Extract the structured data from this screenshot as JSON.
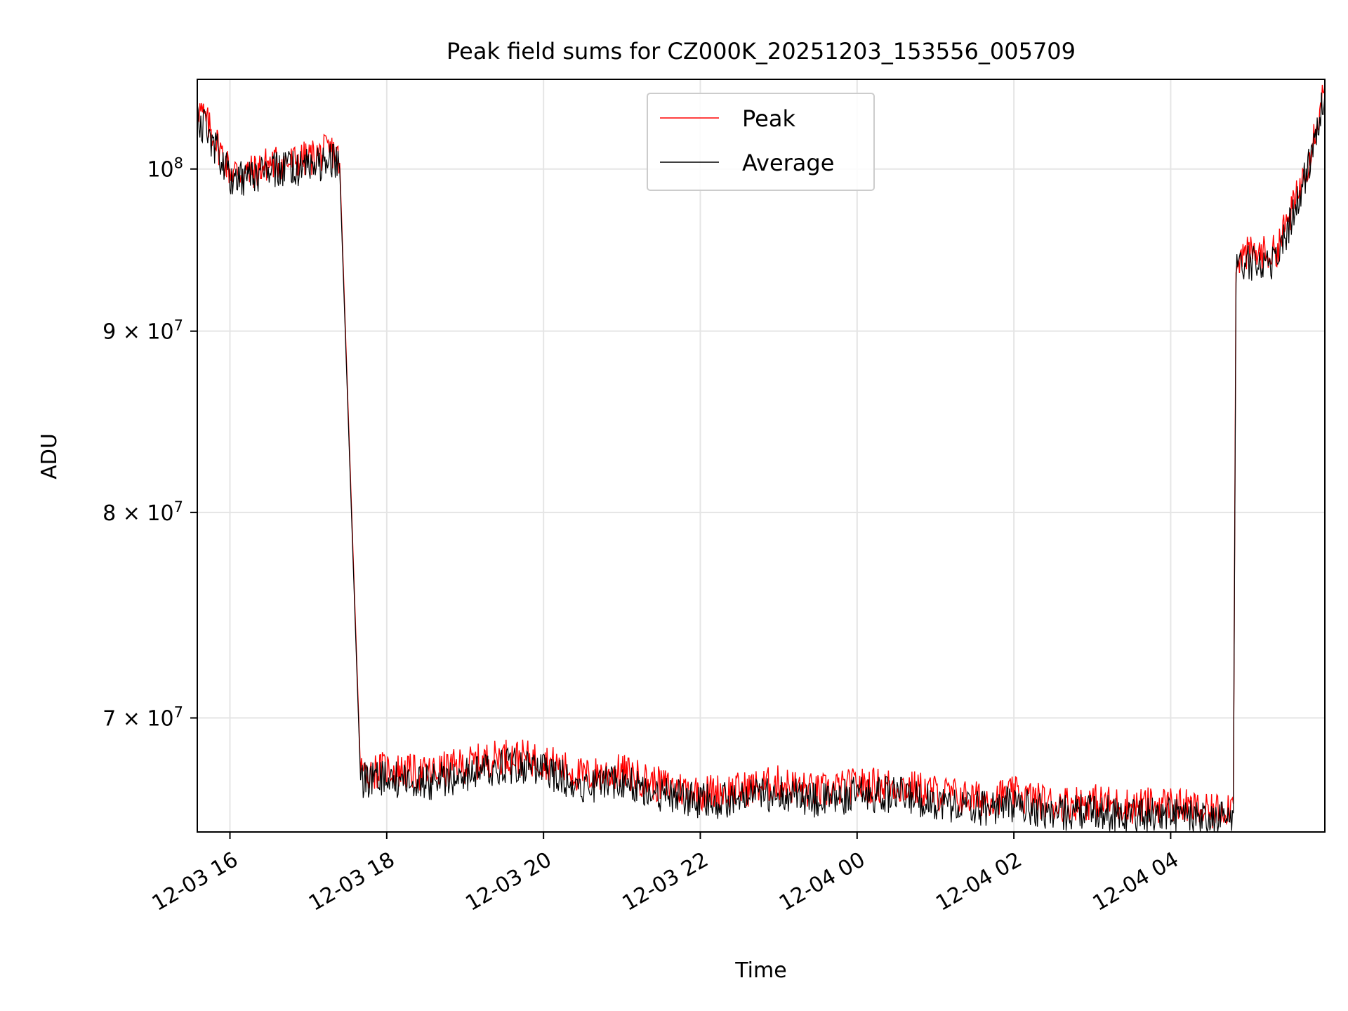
{
  "chart_data": {
    "type": "line",
    "title": "Peak field sums for CZ000K_20251203_153556_005709",
    "xlabel": "Time",
    "ylabel": "ADU",
    "y_scale": "log",
    "xlim": [
      "2025-12-03 15:35",
      "2025-12-04 05:58"
    ],
    "ylim": [
      65000000,
      106000000
    ],
    "grid": true,
    "legend_position": "top-center",
    "x_ticks": [
      "2025-12-03 16:00",
      "2025-12-03 18:00",
      "2025-12-03 20:00",
      "2025-12-03 22:00",
      "2025-12-04 00:00",
      "2025-12-04 02:00",
      "2025-12-04 04:00"
    ],
    "x_tick_labels": [
      "12-03 16",
      "12-03 18",
      "12-03 20",
      "12-03 22",
      "12-04 00",
      "12-04 02",
      "12-04 04"
    ],
    "y_ticks": [
      {
        "value": 70000000,
        "mantissa": "7",
        "exponent": "7"
      },
      {
        "value": 80000000,
        "mantissa": "8",
        "exponent": "7"
      },
      {
        "value": 90000000,
        "mantissa": "9",
        "exponent": "7"
      },
      {
        "value": 100000000,
        "mantissa": "",
        "exponent": "8"
      }
    ],
    "y_tick_base": "10",
    "y_tick_times": "×",
    "series": [
      {
        "name": "Peak",
        "color": "#ff0000"
      },
      {
        "name": "Average",
        "color": "#000000"
      }
    ],
    "x": [
      "2025-12-03 15:35",
      "2025-12-03 15:45",
      "2025-12-03 16:00",
      "2025-12-03 16:15",
      "2025-12-03 16:30",
      "2025-12-03 16:45",
      "2025-12-03 17:00",
      "2025-12-03 17:10",
      "2025-12-03 17:20",
      "2025-12-03 17:24",
      "2025-12-03 17:40",
      "2025-12-03 18:00",
      "2025-12-03 18:30",
      "2025-12-03 19:00",
      "2025-12-03 19:30",
      "2025-12-03 20:00",
      "2025-12-03 20:30",
      "2025-12-03 21:00",
      "2025-12-03 21:30",
      "2025-12-03 22:00",
      "2025-12-03 22:30",
      "2025-12-03 23:00",
      "2025-12-03 23:30",
      "2025-12-04 00:00",
      "2025-12-04 00:30",
      "2025-12-04 01:00",
      "2025-12-04 01:30",
      "2025-12-04 02:00",
      "2025-12-04 02:30",
      "2025-12-04 03:00",
      "2025-12-04 03:30",
      "2025-12-04 04:00",
      "2025-12-04 04:30",
      "2025-12-04 04:48",
      "2025-12-04 04:50",
      "2025-12-04 05:00",
      "2025-12-04 05:20",
      "2025-12-04 05:35",
      "2025-12-04 05:45",
      "2025-12-04 05:58"
    ],
    "peak_values": [
      104200000,
      102600000,
      99900000,
      99700000,
      100400000,
      100400000,
      100700000,
      101000000,
      101200000,
      100400000,
      67600000,
      67700000,
      67500000,
      67900000,
      68300000,
      68100000,
      67400000,
      67600000,
      67000000,
      66700000,
      66800000,
      67100000,
      66700000,
      67000000,
      67000000,
      66700000,
      66400000,
      66600000,
      66200000,
      66300000,
      66100000,
      66200000,
      65800000,
      66200000,
      94400000,
      94600000,
      94700000,
      97800000,
      100500000,
      105500000
    ],
    "average_values": [
      103600000,
      102100000,
      99500000,
      99300000,
      99900000,
      100000000,
      100200000,
      100400000,
      100700000,
      100000000,
      67200000,
      67300000,
      67100000,
      67500000,
      67900000,
      67700000,
      67000000,
      67200000,
      66600000,
      66300000,
      66400000,
      66700000,
      66300000,
      66600000,
      66600000,
      66300000,
      66000000,
      66200000,
      65800000,
      65900000,
      65700000,
      65800000,
      65400000,
      65800000,
      93900000,
      94100000,
      94200000,
      97300000,
      100000000,
      105000000
    ]
  }
}
